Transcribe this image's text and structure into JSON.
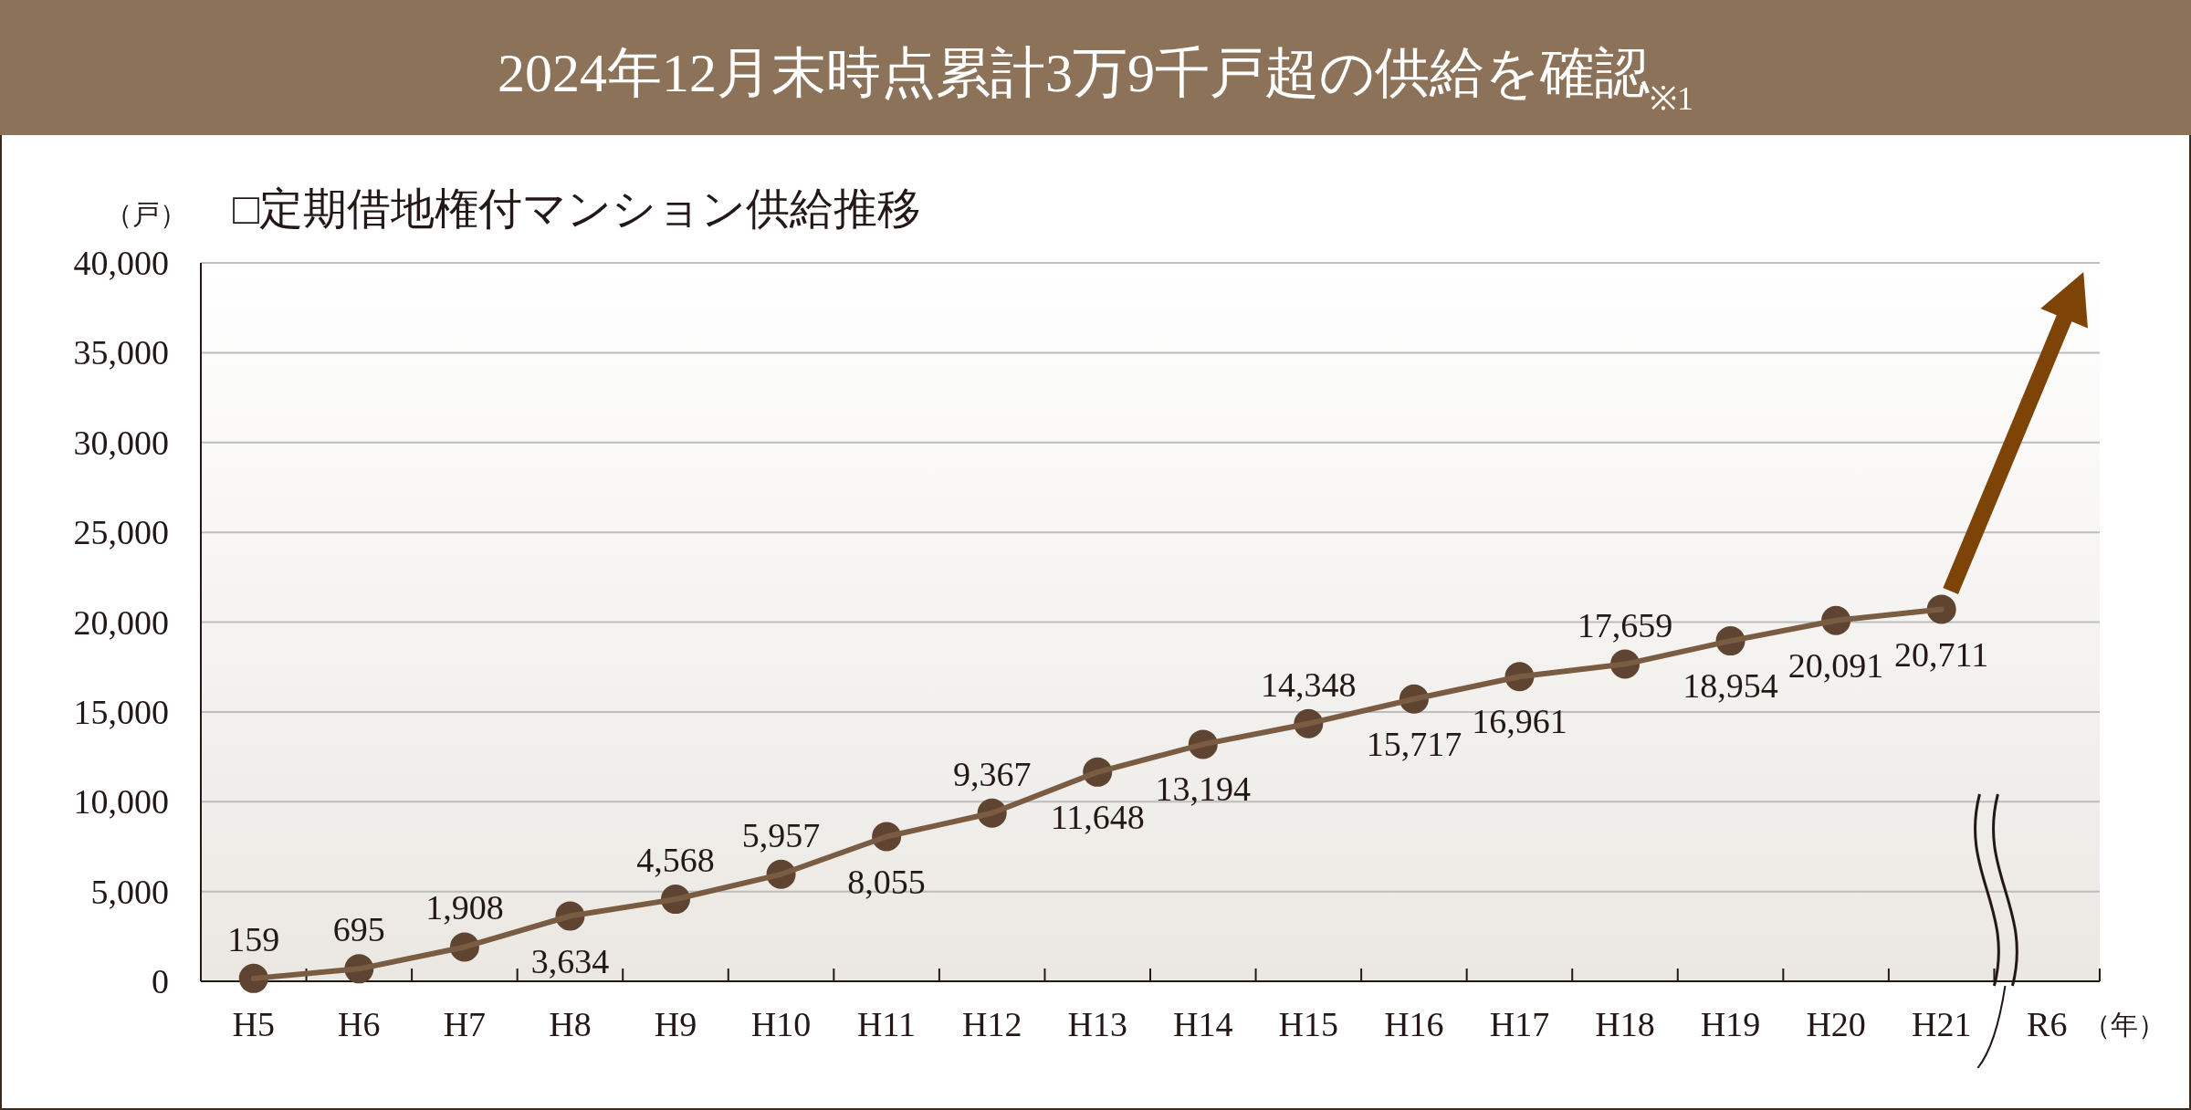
{
  "chart_data": {
    "type": "line",
    "title": "2024年12月末時点累計3万9千戸超の供給を確認$_{※1}$",
    "subtitle": "□定期借地権付マンション供給推移",
    "ylabel": "（戸）",
    "xlabel": "（年）",
    "categories": [
      "H5",
      "H6",
      "H7",
      "H8",
      "H9",
      "H10",
      "H11",
      "H12",
      "H13",
      "H14",
      "H15",
      "H16",
      "H17",
      "H18",
      "H19",
      "H20",
      "H21",
      "R6"
    ],
    "values": [
      159,
      695,
      1908,
      3634,
      4568,
      5957,
      8055,
      9367,
      11648,
      13194,
      14348,
      15717,
      16961,
      17659,
      18954,
      20091,
      20711,
      null
    ],
    "color": "#7a5c43",
    "ylim": [
      0,
      40000
    ],
    "yticks": [
      {
        "value": 0,
        "label": "0"
      },
      {
        "value": 5000,
        "label": "5,000"
      },
      {
        "value": 10000,
        "label": "10,000"
      },
      {
        "value": 15000,
        "label": "15,000"
      },
      {
        "value": 20000,
        "label": "20,000"
      },
      {
        "value": 25000,
        "label": "25,000"
      },
      {
        "value": 30000,
        "label": "30,000"
      },
      {
        "value": 35000,
        "label": "35,000"
      },
      {
        "value": 40000,
        "label": "40,000"
      }
    ],
    "value_labels": [
      "159",
      "695",
      "1,908",
      "3,634",
      "4,568",
      "5,957",
      "8,055",
      "9,367",
      "11,648",
      "13,194",
      "14,348",
      "15,717",
      "16,961",
      "17,659",
      "18,954",
      "20,091",
      "20,711",
      null
    ],
    "grid": "y",
    "marker": "circle"
  }
}
